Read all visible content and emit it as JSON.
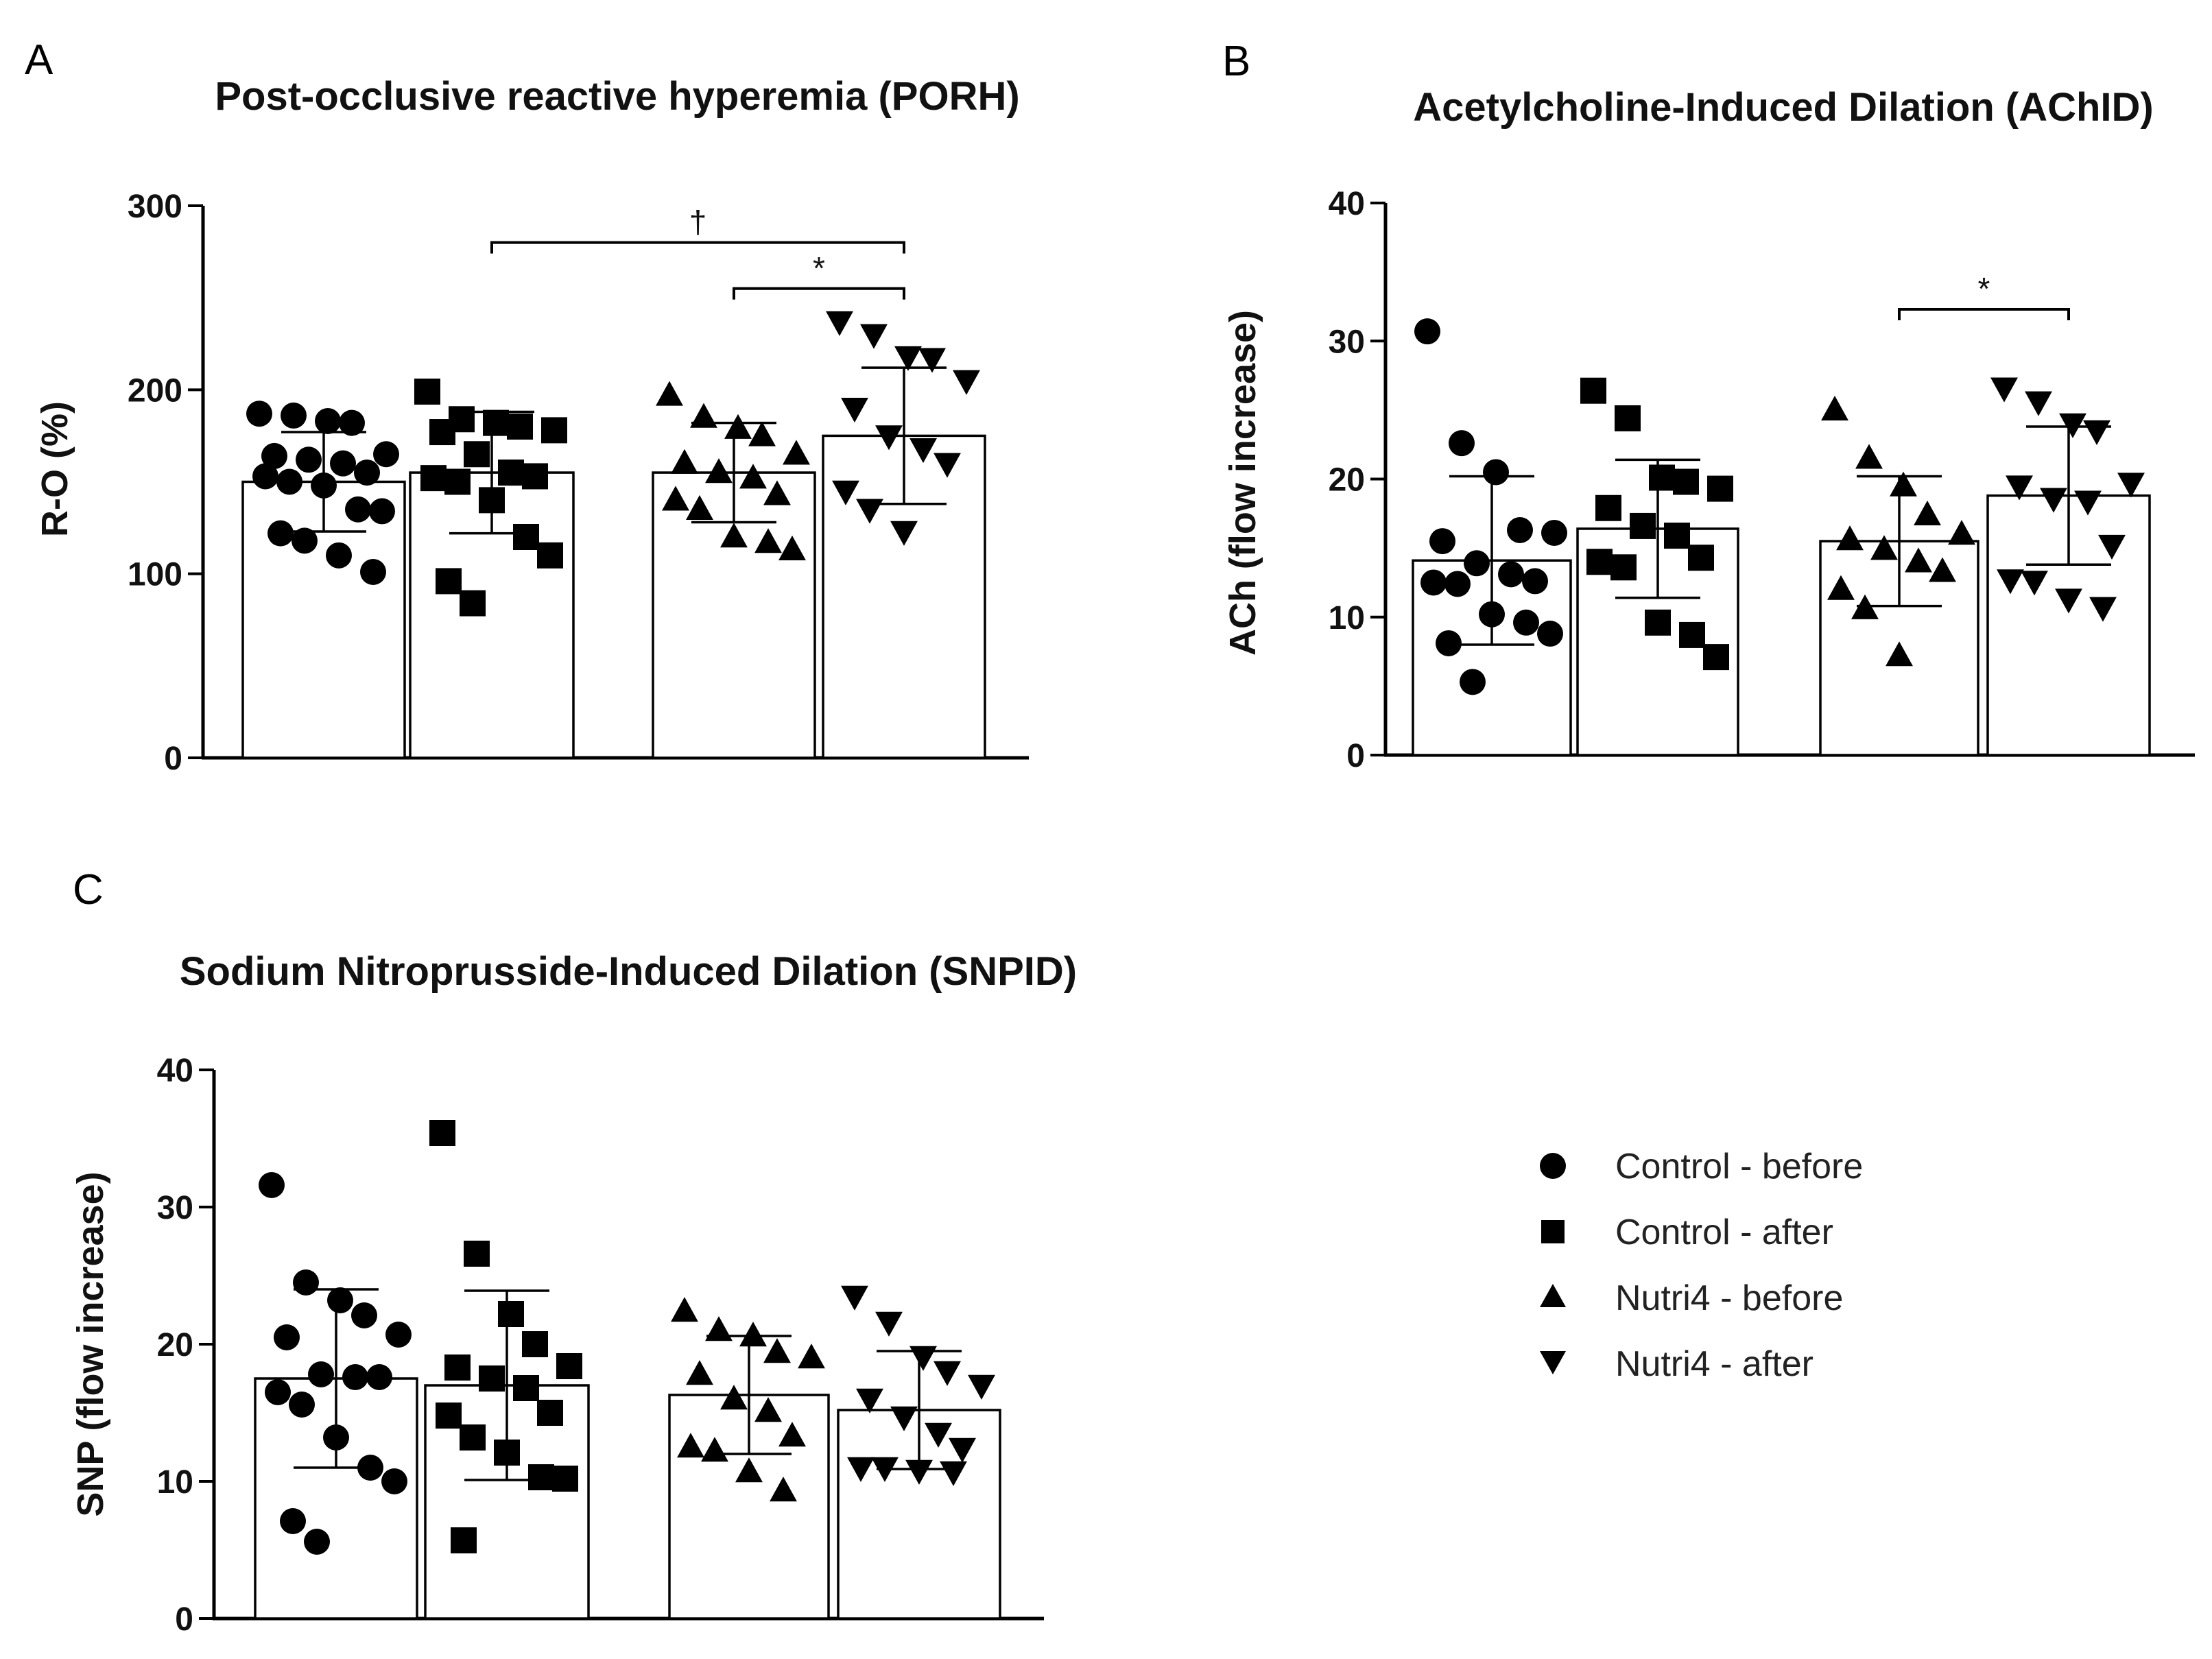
{
  "legend": {
    "items": [
      {
        "label": "Control - before",
        "marker": "circle"
      },
      {
        "label": "Control - after",
        "marker": "square"
      },
      {
        "label": "Nutri4 - before",
        "marker": "triangle-up"
      },
      {
        "label": "Nutri4 - after",
        "marker": "triangle-down"
      }
    ]
  },
  "chart_data": [
    {
      "letter": "A",
      "type": "bar",
      "title": "Post-occlusive reactive hyperemia (PORH)",
      "xlabel": "",
      "ylabel": "R-O (%)",
      "ylim": [
        0,
        300
      ],
      "yticks": [
        0,
        100,
        200,
        300
      ],
      "categories": [
        "Control - before",
        "Control - after",
        "Nutri4 - before",
        "Nutri4 - after"
      ],
      "means": [
        150,
        155,
        155,
        175
      ],
      "sd": [
        27,
        33,
        27,
        37
      ],
      "points": [
        [
          187,
          183,
          182,
          186,
          165,
          164,
          160,
          162,
          155,
          153,
          150,
          148,
          135,
          134,
          122,
          118,
          110,
          101
        ],
        [
          199,
          184,
          182,
          180,
          178,
          177,
          165,
          155,
          153,
          152,
          150,
          140,
          120,
          110,
          96,
          84
        ],
        [
          197,
          185,
          179,
          175,
          165,
          160,
          155,
          152,
          143,
          140,
          135,
          120,
          117,
          113
        ],
        [
          237,
          230,
          218,
          217,
          205,
          190,
          175,
          168,
          160,
          145,
          135,
          123
        ]
      ],
      "markers": [
        "circle",
        "square",
        "triangle-up",
        "triangle-down"
      ],
      "significance": [
        {
          "from": 1,
          "to": 3,
          "label": "†",
          "y": 280
        },
        {
          "from": 2,
          "to": 3,
          "label": "*",
          "y": 255
        }
      ]
    },
    {
      "letter": "B",
      "type": "bar",
      "title": "Acetylcholine-Induced Dilation (AChID)",
      "xlabel": "",
      "ylabel": "ACh (flow increase)",
      "ylim": [
        0,
        40
      ],
      "yticks": [
        0,
        10,
        20,
        30,
        40
      ],
      "categories": [
        "Control - before",
        "Control - after",
        "Nutri4 - before",
        "Nutri4 - after"
      ],
      "means": [
        14.1,
        16.4,
        15.5,
        18.8
      ],
      "sd": [
        6.1,
        5.0,
        4.7,
        5.0
      ],
      "points": [
        [
          30.7,
          22.6,
          20.5,
          16.3,
          16.1,
          15.5,
          13.9,
          13.1,
          12.5,
          12.4,
          12.6,
          10.2,
          9.6,
          8.8,
          8.1,
          5.3
        ],
        [
          26.4,
          24.4,
          20.1,
          19.8,
          19.3,
          17.9,
          16.6,
          15.9,
          14.3,
          14.0,
          13.6,
          9.6,
          8.7,
          7.1
        ],
        [
          25.0,
          21.5,
          19.5,
          17.4,
          16.0,
          15.6,
          14.9,
          14.0,
          13.3,
          12.0,
          10.6,
          7.2
        ],
        [
          26.6,
          25.6,
          24.0,
          23.5,
          19.7,
          19.5,
          18.6,
          18.4,
          15.2,
          12.7,
          12.6,
          11.3,
          10.7
        ]
      ],
      "markers": [
        "circle",
        "square",
        "triangle-up",
        "triangle-down"
      ],
      "significance": [
        {
          "from": 2,
          "to": 3,
          "label": "*",
          "y": 32.3
        }
      ]
    },
    {
      "letter": "C",
      "type": "bar",
      "title": "Sodium Nitroprusside-Induced Dilation (SNPID)",
      "xlabel": "",
      "ylabel": "SNP (flow increase)",
      "ylim": [
        0,
        40
      ],
      "yticks": [
        0,
        10,
        20,
        30,
        40
      ],
      "categories": [
        "Control - before",
        "Control - after",
        "Nutri4 - before",
        "Nutri4 - after"
      ],
      "means": [
        17.5,
        17.0,
        16.3,
        15.2
      ],
      "sd": [
        6.5,
        6.9,
        4.3,
        4.3
      ],
      "points": [
        [
          31.6,
          24.5,
          23.2,
          22.1,
          20.7,
          20.5,
          17.8,
          17.6,
          17.6,
          16.5,
          15.6,
          13.2,
          11.0,
          10.0,
          7.1,
          5.6
        ],
        [
          35.4,
          26.6,
          22.2,
          20.0,
          18.3,
          18.4,
          17.5,
          16.8,
          15.0,
          14.8,
          13.2,
          12.1,
          10.3,
          10.2,
          5.7
        ],
        [
          22.4,
          21.0,
          20.6,
          19.4,
          19.0,
          17.8,
          16.0,
          15.1,
          13.3,
          12.5,
          12.2,
          10.7,
          9.3
        ],
        [
          23.5,
          21.6,
          19.1,
          18.0,
          17.0,
          16.0,
          14.7,
          13.5,
          12.4,
          11.0,
          11.0,
          10.8,
          10.7
        ]
      ],
      "markers": [
        "circle",
        "square",
        "triangle-up",
        "triangle-down"
      ],
      "significance": []
    }
  ]
}
